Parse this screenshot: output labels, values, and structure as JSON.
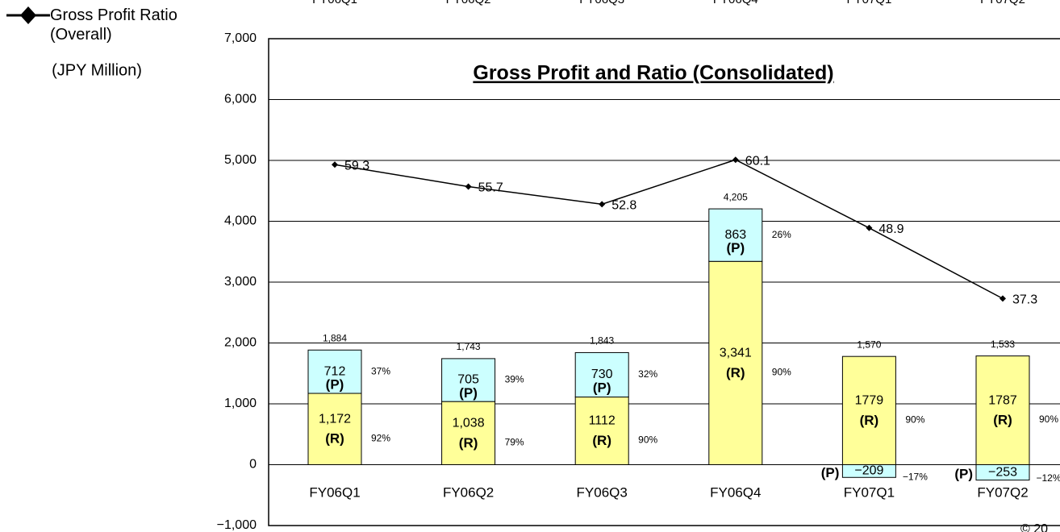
{
  "chart_data": {
    "type": "bar_line",
    "title": "Gross Profit and Ratio (Consolidated)",
    "y_unit": "(JPY Million)",
    "note": "© 20",
    "categories": [
      "FY06Q1",
      "FY06Q2",
      "FY06Q3",
      "FY06Q4",
      "FY07Q1",
      "FY07Q2"
    ],
    "ylim": [
      -1000,
      7000
    ],
    "yticks": [
      {
        "value": -1000,
        "label": "−1,000"
      },
      0,
      {
        "value": 1000,
        "label": "1,000"
      },
      {
        "value": 2000,
        "label": "2,000"
      },
      {
        "value": 3000,
        "label": "3,000"
      },
      {
        "value": 4000,
        "label": "4,000"
      },
      {
        "value": 5000,
        "label": "5,000"
      },
      {
        "value": 6000,
        "label": "6,000"
      },
      {
        "value": 7000,
        "label": "7,000"
      }
    ],
    "y2lim": [
      0,
      80
    ],
    "grid": true,
    "series": [
      {
        "name": "(R)",
        "color": "#ffff99",
        "values": [
          1172,
          1038,
          1112,
          3341,
          1779,
          1787
        ],
        "value_labels": [
          "1,172",
          "1,038",
          "1112",
          "3,341",
          "1779",
          "1787"
        ],
        "pct": [
          92,
          79,
          90,
          90,
          90,
          90
        ],
        "pct_labels": [
          "92%",
          "79%",
          "90%",
          "90%",
          "90%",
          "90%"
        ]
      },
      {
        "name": "(P)",
        "color": "#ccffff",
        "values": [
          712,
          705,
          730,
          863,
          -209,
          -253
        ],
        "value_labels": [
          "712",
          "705",
          "730",
          "863",
          "−209",
          "−253"
        ],
        "pct": [
          37,
          39,
          32,
          26,
          -17,
          -12
        ],
        "pct_labels": [
          "37%",
          "39%",
          "32%",
          "26%",
          "−17%",
          "−12%"
        ]
      },
      {
        "name": "Gross Profit Ratio (Overall)",
        "color": "#000000",
        "axis": "y2",
        "values": [
          59.3,
          55.7,
          52.8,
          60.1,
          48.9,
          37.3
        ]
      }
    ],
    "totals": [
      1884,
      1743,
      1843,
      4205,
      1570,
      1533
    ],
    "total_labels": [
      "1,884",
      "1,743",
      "1,843",
      "4,205",
      "1,570",
      "1,533"
    ]
  }
}
